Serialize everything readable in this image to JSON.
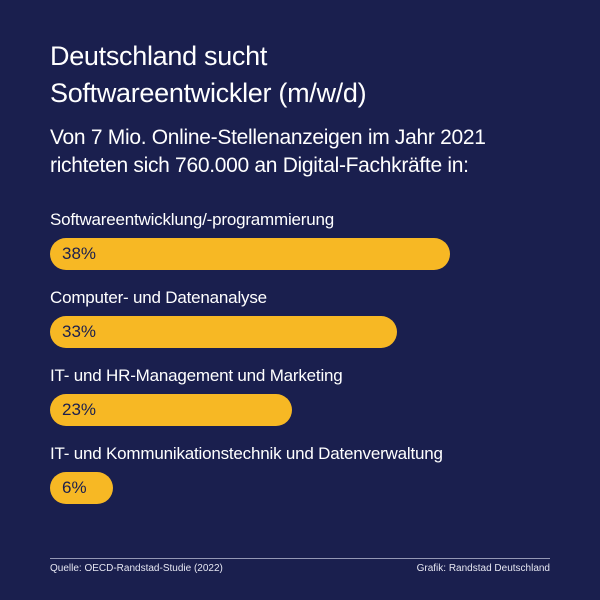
{
  "header": {
    "title_lines": [
      "Deutschland sucht",
      "Softwareentwickler (m/w/d)"
    ],
    "subtitle_lines": [
      "Von 7 Mio. Online-Stellenanzeigen im Jahr 2021",
      "richteten sich 760.000 an Digital-Fachkräfte in:"
    ]
  },
  "footer": {
    "source": "Quelle: OECD-Randstad-Studie (2022)",
    "credit": "Grafik: Randstad Deutschland"
  },
  "colors": {
    "background": "#1a1f4e",
    "bar": "#f7b824",
    "text": "#ffffff"
  },
  "chart_data": {
    "type": "bar",
    "orientation": "horizontal",
    "categories": [
      "Softwareentwicklung/-programmierung",
      "Computer- und Datenanalyse",
      "IT- und HR-Management und Marketing",
      "IT- und Kommunikationstechnik und Datenverwaltung"
    ],
    "values": [
      38,
      33,
      23,
      6
    ],
    "value_labels": [
      "38%",
      "33%",
      "23%",
      "6%"
    ],
    "unit": "%",
    "xlim": [
      0,
      100
    ],
    "grid": false,
    "legend": "none"
  }
}
